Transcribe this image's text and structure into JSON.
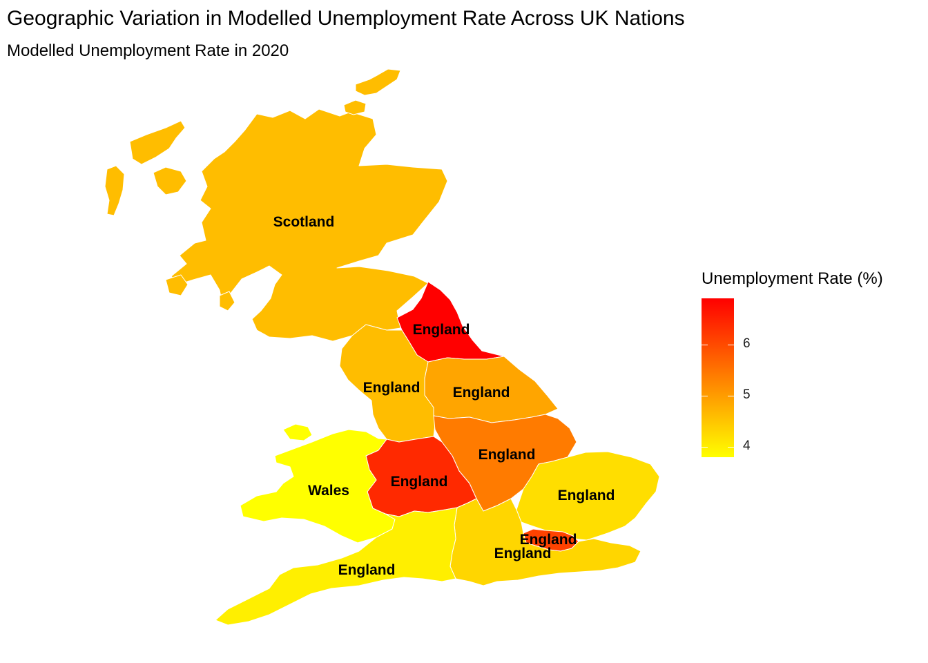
{
  "title": "Geographic Variation in Modelled Unemployment Rate Across UK Nations",
  "subtitle": "Modelled Unemployment Rate in 2020",
  "legend": {
    "title": "Unemployment Rate (%)",
    "min": 3.8,
    "max": 6.9,
    "color_low": "#FFFF00",
    "color_high": "#FF0000",
    "ticks": [
      {
        "value": 4,
        "label": "4"
      },
      {
        "value": 5,
        "label": "5"
      },
      {
        "value": 6,
        "label": "6"
      }
    ]
  },
  "regions": [
    {
      "id": "scotland",
      "label": "Scotland",
      "value": 4.6
    },
    {
      "id": "north-east",
      "label": "England",
      "value": 6.9
    },
    {
      "id": "north-west",
      "label": "England",
      "value": 4.6
    },
    {
      "id": "yorkshire",
      "label": "England",
      "value": 4.9
    },
    {
      "id": "east-midlands",
      "label": "England",
      "value": 5.4
    },
    {
      "id": "west-midlands",
      "label": "England",
      "value": 6.4
    },
    {
      "id": "wales",
      "label": "Wales",
      "value": 3.8
    },
    {
      "id": "east",
      "label": "England",
      "value": 4.2
    },
    {
      "id": "london",
      "label": "England",
      "value": 6.1
    },
    {
      "id": "south-east",
      "label": "England",
      "value": 4.3
    },
    {
      "id": "south-west",
      "label": "England",
      "value": 4.0
    }
  ]
}
